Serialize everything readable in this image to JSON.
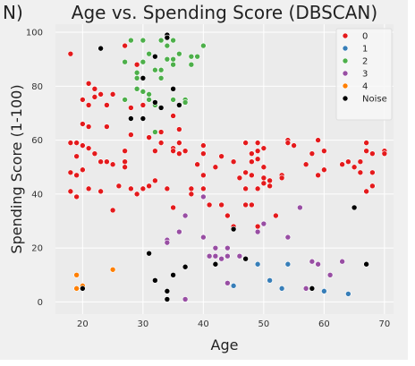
{
  "chart_data": {
    "type": "scatter",
    "title": "Age vs. Spending Score (DBSCAN)",
    "title_clipped_prefix": "N)",
    "xlabel": "Age",
    "ylabel": "Spending Score (1-100)",
    "xlim": [
      15.5,
      71.5
    ],
    "ylim": [
      -4.5,
      103
    ],
    "x_ticks": [
      20,
      30,
      40,
      50,
      60,
      70
    ],
    "y_ticks": [
      0,
      20,
      40,
      60,
      80,
      100
    ],
    "grid": true,
    "legend_position": "top-right",
    "series": [
      {
        "name": "0",
        "color": "#e41a1c",
        "points": [
          [
            18,
            92
          ],
          [
            18,
            59
          ],
          [
            18,
            48
          ],
          [
            18,
            41
          ],
          [
            19,
            59
          ],
          [
            19,
            54
          ],
          [
            19,
            47
          ],
          [
            19,
            39
          ],
          [
            20,
            75
          ],
          [
            20,
            66
          ],
          [
            20,
            49
          ],
          [
            21,
            81
          ],
          [
            21,
            73
          ],
          [
            21,
            57
          ],
          [
            21,
            42
          ],
          [
            22,
            79
          ],
          [
            22,
            76
          ],
          [
            22,
            55
          ],
          [
            23,
            77
          ],
          [
            23,
            52
          ],
          [
            23,
            41
          ],
          [
            24,
            73
          ],
          [
            24,
            65
          ],
          [
            24,
            52
          ],
          [
            25,
            77
          ],
          [
            25,
            51
          ],
          [
            25,
            34
          ],
          [
            26,
            43
          ],
          [
            27,
            56
          ],
          [
            27,
            52
          ],
          [
            27,
            50
          ],
          [
            28,
            72
          ],
          [
            28,
            42
          ],
          [
            29,
            88
          ],
          [
            29,
            40
          ],
          [
            30,
            73
          ],
          [
            30,
            42
          ],
          [
            31,
            61
          ],
          [
            31,
            43
          ],
          [
            32,
            56
          ],
          [
            32,
            45
          ],
          [
            33,
            63
          ],
          [
            33,
            59
          ],
          [
            34,
            42
          ],
          [
            35,
            57
          ],
          [
            35,
            56
          ],
          [
            35,
            35
          ],
          [
            36,
            59
          ],
          [
            36,
            55
          ],
          [
            37,
            56
          ],
          [
            38,
            42
          ],
          [
            38,
            40
          ],
          [
            39,
            51
          ],
          [
            40,
            58
          ],
          [
            40,
            55
          ],
          [
            40,
            47
          ],
          [
            40,
            42
          ],
          [
            41,
            36
          ],
          [
            42,
            50
          ],
          [
            43,
            54
          ],
          [
            43,
            36
          ],
          [
            44,
            32
          ],
          [
            45,
            52
          ],
          [
            45,
            28
          ],
          [
            46,
            46
          ],
          [
            47,
            59
          ],
          [
            47,
            48
          ],
          [
            47,
            42
          ],
          [
            47,
            36
          ],
          [
            48,
            55
          ],
          [
            48,
            52
          ],
          [
            48,
            47
          ],
          [
            48,
            36
          ],
          [
            49,
            59
          ],
          [
            49,
            56
          ],
          [
            49,
            53
          ],
          [
            49,
            42
          ],
          [
            49,
            28
          ],
          [
            50,
            57
          ],
          [
            50,
            50
          ],
          [
            50,
            46
          ],
          [
            50,
            44
          ],
          [
            51,
            45
          ],
          [
            51,
            43
          ],
          [
            52,
            32
          ],
          [
            53,
            47
          ],
          [
            53,
            46
          ],
          [
            54,
            60
          ],
          [
            54,
            59
          ],
          [
            55,
            58
          ],
          [
            57,
            51
          ],
          [
            58,
            55
          ],
          [
            59,
            60
          ],
          [
            59,
            47
          ],
          [
            60,
            56
          ],
          [
            60,
            49
          ],
          [
            63,
            51
          ],
          [
            64,
            52
          ],
          [
            65,
            50
          ],
          [
            66,
            48
          ],
          [
            66,
            52
          ],
          [
            67,
            59
          ],
          [
            67,
            56
          ],
          [
            67,
            41
          ],
          [
            68,
            55
          ],
          [
            68,
            48
          ],
          [
            68,
            43
          ],
          [
            70,
            56
          ],
          [
            70,
            55
          ],
          [
            18,
            41
          ],
          [
            20,
            58
          ],
          [
            21,
            65
          ],
          [
            35,
            69
          ],
          [
            36,
            64
          ],
          [
            28,
            62
          ],
          [
            27,
            95
          ]
        ]
      },
      {
        "name": "1",
        "color": "#377eb8",
        "points": [
          [
            45,
            6
          ],
          [
            49,
            14
          ],
          [
            51,
            8
          ],
          [
            53,
            5
          ],
          [
            54,
            14
          ],
          [
            58,
            5
          ],
          [
            60,
            4
          ],
          [
            64,
            3
          ]
        ]
      },
      {
        "name": "2",
        "color": "#4daf4a",
        "points": [
          [
            27,
            89
          ],
          [
            27,
            75
          ],
          [
            28,
            97
          ],
          [
            29,
            85
          ],
          [
            29,
            83
          ],
          [
            29,
            79
          ],
          [
            30,
            97
          ],
          [
            30,
            89
          ],
          [
            30,
            78
          ],
          [
            31,
            92
          ],
          [
            31,
            77
          ],
          [
            31,
            75
          ],
          [
            32,
            86
          ],
          [
            32,
            74
          ],
          [
            32,
            73
          ],
          [
            33,
            97
          ],
          [
            33,
            86
          ],
          [
            33,
            83
          ],
          [
            34,
            95
          ],
          [
            34,
            90
          ],
          [
            35,
            97
          ],
          [
            35,
            90
          ],
          [
            35,
            88
          ],
          [
            35,
            75
          ],
          [
            36,
            92
          ],
          [
            37,
            75
          ],
          [
            37,
            74
          ],
          [
            38,
            91
          ],
          [
            38,
            88
          ],
          [
            39,
            91
          ],
          [
            40,
            95
          ],
          [
            32,
            63
          ]
        ]
      },
      {
        "name": "3",
        "color": "#984ea3",
        "points": [
          [
            34,
            23
          ],
          [
            34,
            22
          ],
          [
            36,
            26
          ],
          [
            37,
            32
          ],
          [
            37,
            1
          ],
          [
            40,
            39
          ],
          [
            40,
            24
          ],
          [
            41,
            17
          ],
          [
            42,
            17
          ],
          [
            42,
            20
          ],
          [
            43,
            16
          ],
          [
            44,
            20
          ],
          [
            44,
            17
          ],
          [
            44,
            7
          ],
          [
            46,
            17
          ],
          [
            47,
            16
          ],
          [
            49,
            26
          ],
          [
            50,
            29
          ],
          [
            54,
            24
          ],
          [
            56,
            35
          ],
          [
            57,
            5
          ],
          [
            58,
            15
          ],
          [
            59,
            14
          ],
          [
            61,
            10
          ],
          [
            63,
            15
          ]
        ]
      },
      {
        "name": "4",
        "color": "#ff7f00",
        "points": [
          [
            19,
            10
          ],
          [
            19,
            5
          ],
          [
            20,
            6
          ],
          [
            25,
            12
          ]
        ]
      },
      {
        "name": "Noise",
        "color": "#000000",
        "points": [
          [
            20,
            5
          ],
          [
            23,
            94
          ],
          [
            30,
            83
          ],
          [
            32,
            91
          ],
          [
            32,
            74
          ],
          [
            34,
            99
          ],
          [
            34,
            98
          ],
          [
            35,
            79
          ],
          [
            36,
            73
          ],
          [
            28,
            68
          ],
          [
            30,
            68
          ],
          [
            31,
            18
          ],
          [
            32,
            8
          ],
          [
            33,
            72
          ],
          [
            34,
            4
          ],
          [
            34,
            1
          ],
          [
            35,
            10
          ],
          [
            37,
            13
          ],
          [
            42,
            14
          ],
          [
            45,
            27
          ],
          [
            47,
            16
          ],
          [
            58,
            5
          ],
          [
            65,
            35
          ],
          [
            67,
            14
          ]
        ]
      }
    ]
  }
}
